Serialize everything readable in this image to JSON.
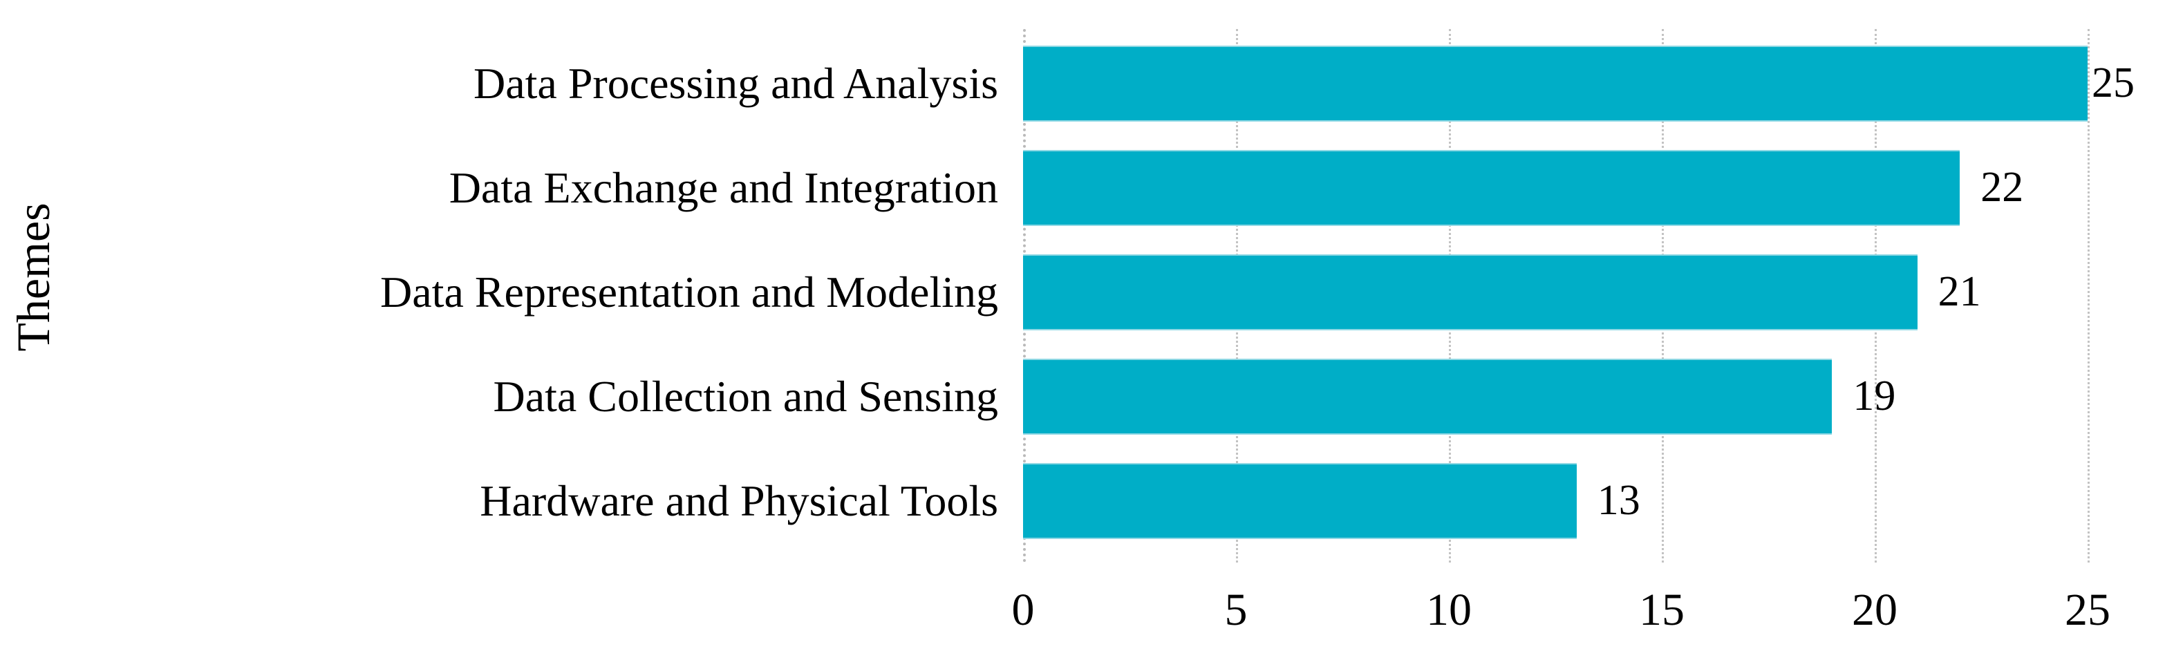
{
  "axis": {
    "y_title": "Themes"
  },
  "colors": {
    "bar": "#00aec7",
    "bar_edge": "#8fd8e4",
    "gridline": "#c3c3c3",
    "text": "#000000",
    "background": "#ffffff"
  },
  "chart_data": {
    "type": "bar",
    "orientation": "horizontal",
    "title": "",
    "xlabel": "",
    "ylabel": "Themes",
    "categories": [
      "Data Processing and Analysis",
      "Data Exchange and Integration",
      "Data Representation and Modeling",
      "Data Collection and Sensing",
      "Hardware and Physical Tools"
    ],
    "values": [
      25,
      22,
      21,
      19,
      13
    ],
    "data_labels": [
      "25",
      "22",
      "21",
      "19",
      "13"
    ],
    "xticks": [
      0,
      5,
      10,
      15,
      20,
      25
    ],
    "xtick_labels": [
      "0",
      "5",
      "10",
      "15",
      "20",
      "25"
    ],
    "xlim": [
      0,
      25
    ],
    "grid": "vertical dotted gridlines at each x tick",
    "legend": "none",
    "bars_sorted": "descending top to bottom"
  }
}
